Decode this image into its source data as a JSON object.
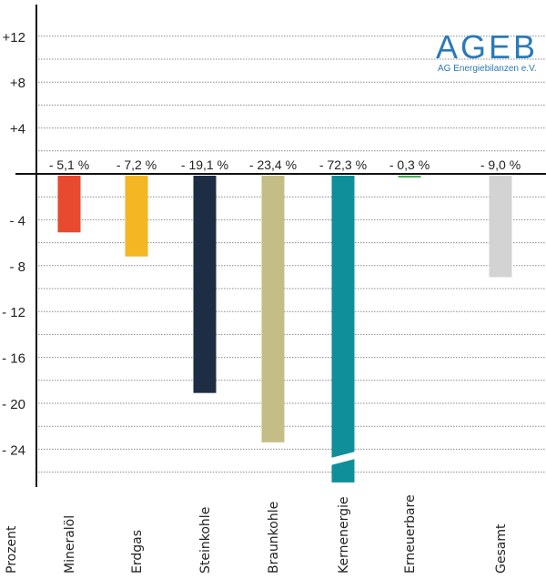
{
  "logo": {
    "text": "AGEB",
    "subtitle": "AG Energiebilanzen e.V.",
    "color": "#2a7ab8"
  },
  "chart_data": {
    "type": "bar",
    "ylabel": "Prozent",
    "ylim": [
      -27,
      14
    ],
    "yticks": [
      12,
      8,
      4,
      -4,
      -8,
      -12,
      -16,
      -20,
      -24
    ],
    "ytick_labels": [
      "+12",
      "+8",
      "+4",
      "- 4",
      "- 8",
      "- 12",
      "- 16",
      "- 20",
      "- 24"
    ],
    "grid": true,
    "categories": [
      "Mineralöl",
      "Erdgas",
      "Steinkohle",
      "Braunkohle",
      "Kernenergie",
      "Erneuerbare",
      "Gesamt"
    ],
    "values": [
      -5.1,
      -7.2,
      -19.1,
      -23.4,
      -72.3,
      -0.3,
      -9.0
    ],
    "data_labels": [
      "- 5,1 %",
      "- 7,2 %",
      "- 19,1 %",
      "- 23,4 %",
      "- 72,3 %",
      "- 0,3 %",
      "- 9,0 %"
    ],
    "colors": [
      "#e84a2f",
      "#f4b623",
      "#1d2d44",
      "#c4be86",
      "#0f8f99",
      "#4caf5a",
      "#d3d3d3"
    ],
    "axis_break": "Kernenergie"
  }
}
